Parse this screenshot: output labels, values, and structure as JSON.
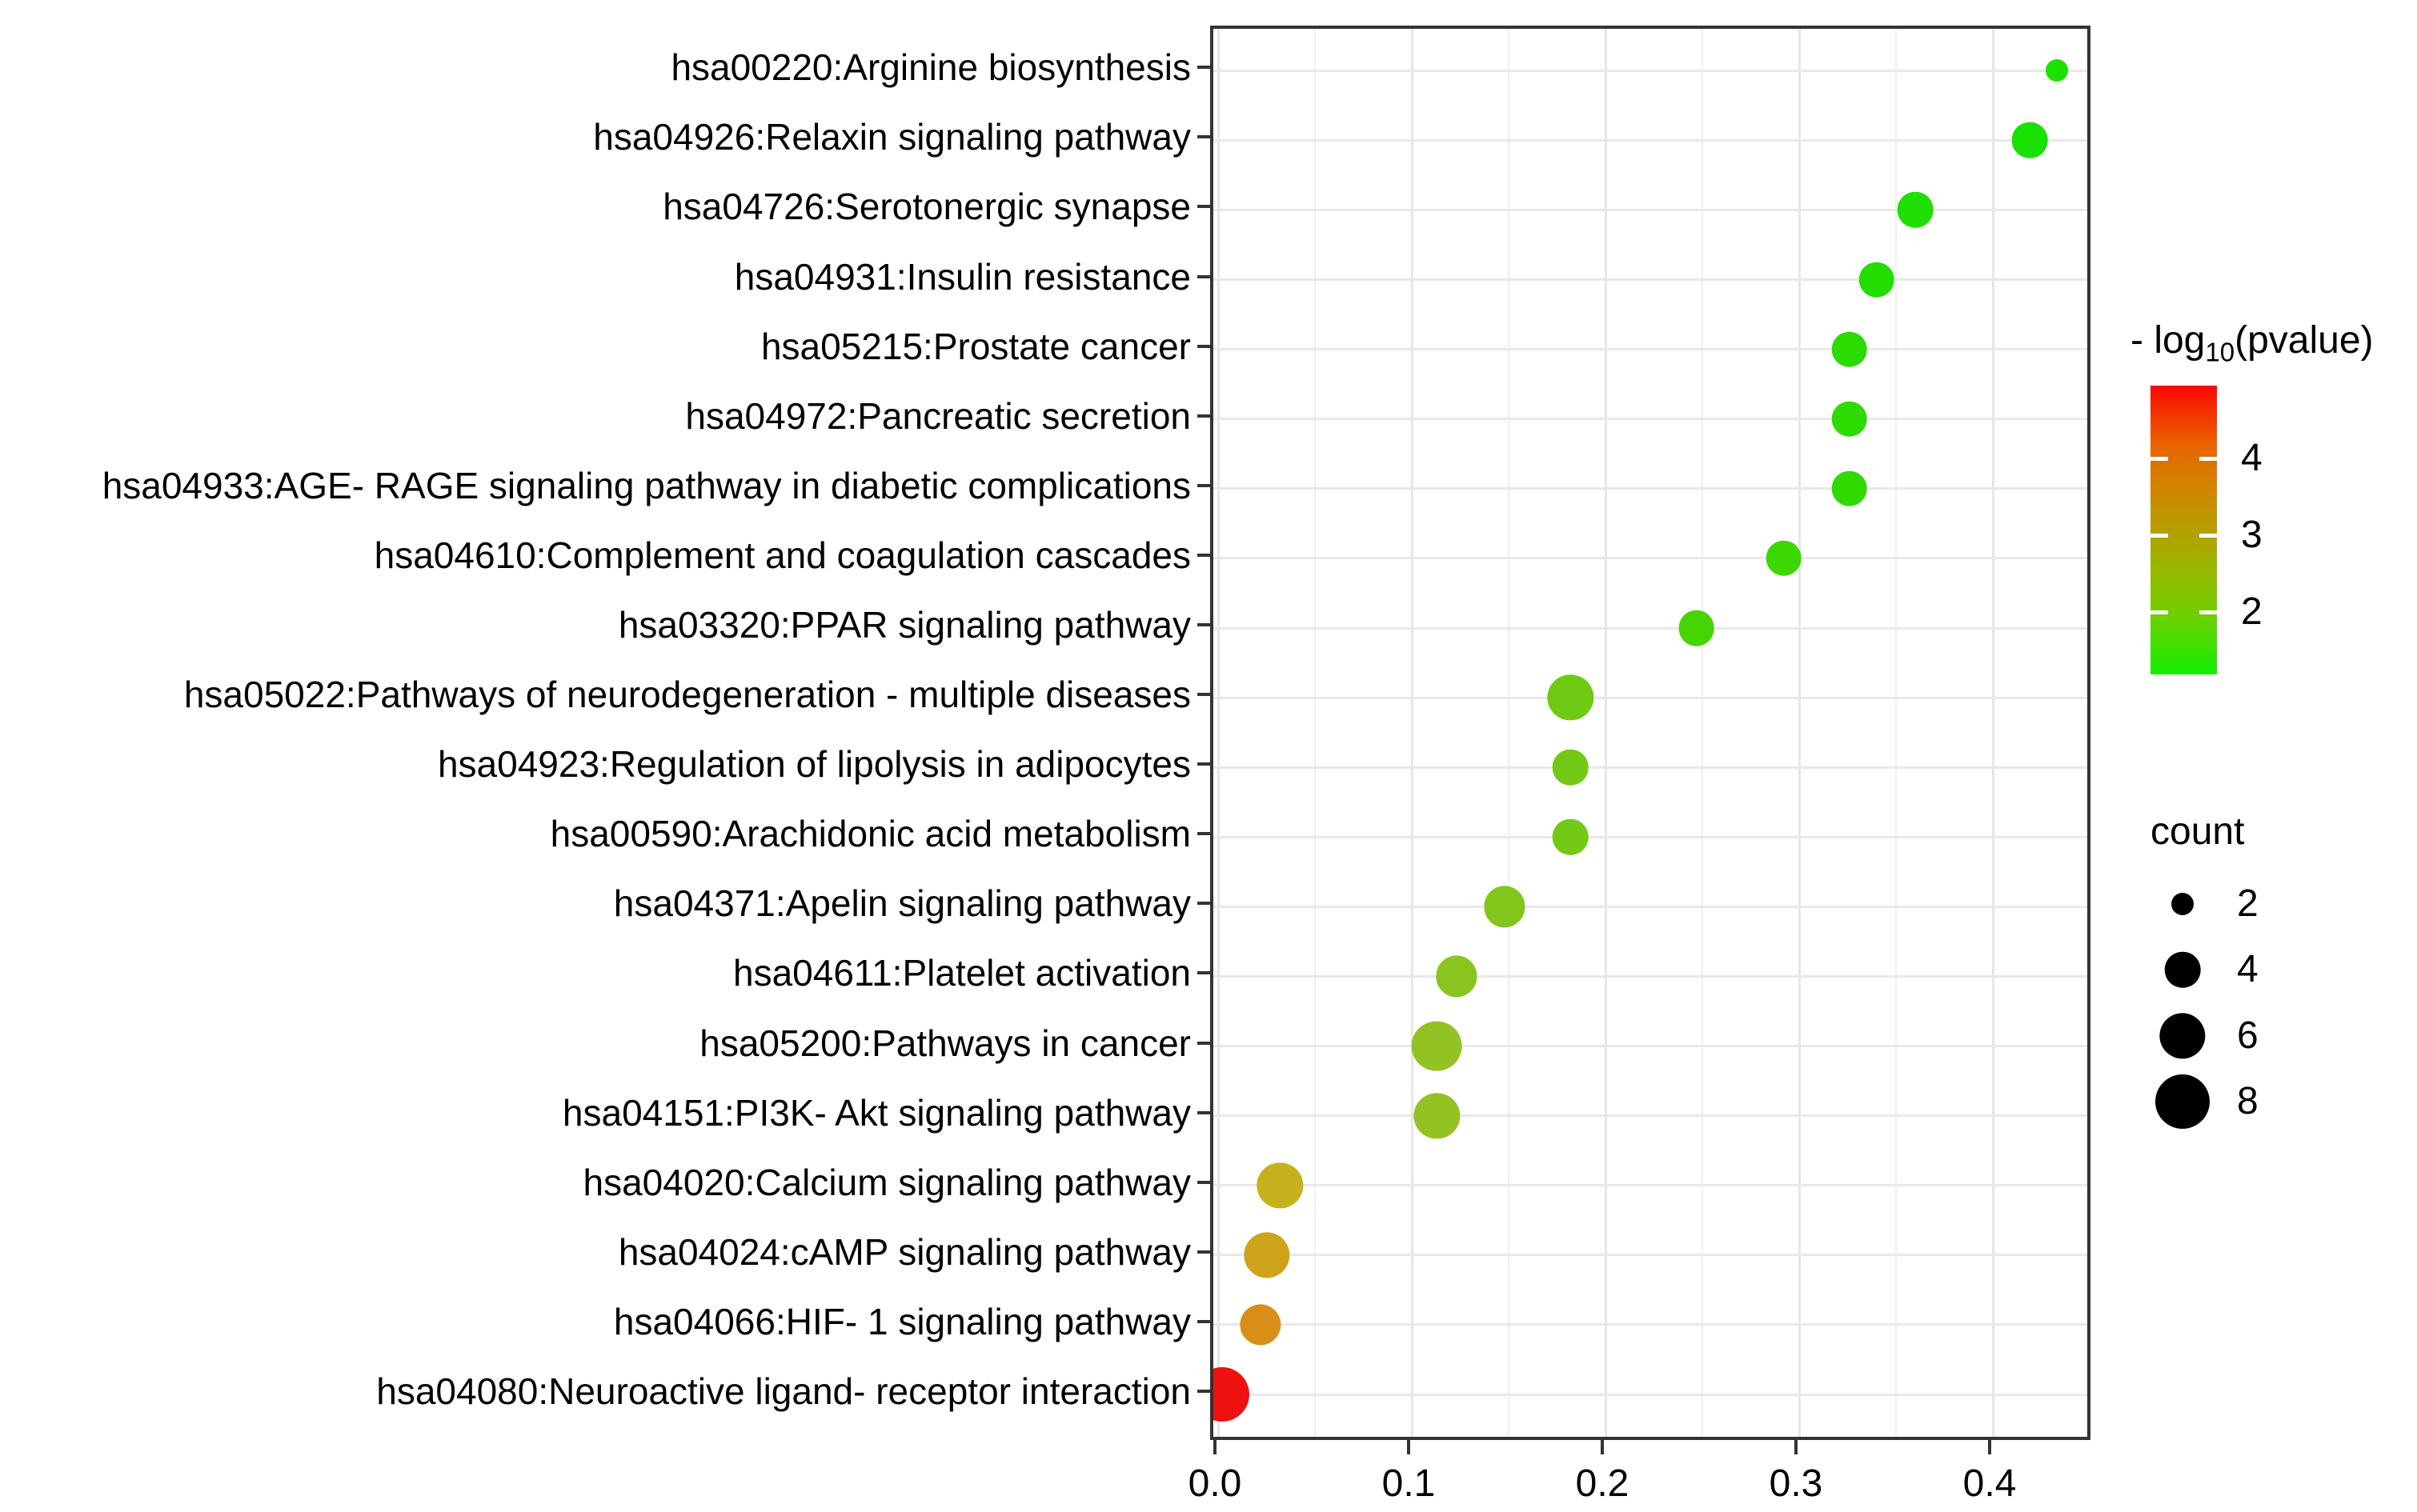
{
  "chart_data": {
    "type": "scatter",
    "title": "",
    "xlabel": "",
    "ylabel": "",
    "xlim": [
      -0.0025,
      0.452
    ],
    "x_ticks": [
      "0.0",
      "0.1",
      "0.2",
      "0.3",
      "0.4"
    ],
    "x_tick_values": [
      0.0,
      0.1,
      0.2,
      0.3,
      0.4
    ],
    "x_minor_step": 0.05,
    "grid": "on",
    "points": [
      {
        "id": "hsa00220",
        "pathway": "hsa00220:Arginine biosynthesis",
        "x": 0.433,
        "count": 2,
        "neg_log10_pvalue": 1.5,
        "color": "#1ce000"
      },
      {
        "id": "hsa04926",
        "pathway": "hsa04926:Relaxin signaling pathway",
        "x": 0.419,
        "count": 4,
        "neg_log10_pvalue": 1.55,
        "color": "#18e000"
      },
      {
        "id": "hsa04726",
        "pathway": "hsa04726:Serotonergic synapse",
        "x": 0.36,
        "count": 4,
        "neg_log10_pvalue": 1.5,
        "color": "#1fdf00"
      },
      {
        "id": "hsa04931",
        "pathway": "hsa04931:Insulin resistance",
        "x": 0.34,
        "count": 4,
        "neg_log10_pvalue": 1.5,
        "color": "#24dd00"
      },
      {
        "id": "hsa05215",
        "pathway": "hsa05215:Prostate cancer",
        "x": 0.326,
        "count": 4,
        "neg_log10_pvalue": 1.45,
        "color": "#2cdb00"
      },
      {
        "id": "hsa04972",
        "pathway": "hsa04972:Pancreatic secretion",
        "x": 0.326,
        "count": 4,
        "neg_log10_pvalue": 1.45,
        "color": "#2edb00"
      },
      {
        "id": "hsa04933",
        "pathway": "hsa04933:AGE- RAGE signaling pathway in diabetic complications",
        "x": 0.326,
        "count": 4,
        "neg_log10_pvalue": 1.45,
        "color": "#30da00"
      },
      {
        "id": "hsa04610",
        "pathway": "hsa04610:Complement and coagulation cascades",
        "x": 0.292,
        "count": 4,
        "neg_log10_pvalue": 1.4,
        "color": "#3ad800"
      },
      {
        "id": "hsa03320",
        "pathway": "hsa03320:PPAR signaling pathway",
        "x": 0.247,
        "count": 4,
        "neg_log10_pvalue": 1.6,
        "color": "#46d500"
      },
      {
        "id": "hsa05022",
        "pathway": "hsa05022:Pathways of neurodegeneration -  multiple diseases",
        "x": 0.182,
        "count": 6,
        "neg_log10_pvalue": 2.1,
        "color": "#6fca14"
      },
      {
        "id": "hsa04923",
        "pathway": "hsa04923:Regulation of lipolysis in adipocytes",
        "x": 0.182,
        "count": 4,
        "neg_log10_pvalue": 2.1,
        "color": "#72c915"
      },
      {
        "id": "hsa00590",
        "pathway": "hsa00590:Arachidonic acid metabolism",
        "x": 0.182,
        "count": 4,
        "neg_log10_pvalue": 2.1,
        "color": "#74c916"
      },
      {
        "id": "hsa04371",
        "pathway": "hsa04371:Apelin signaling pathway",
        "x": 0.148,
        "count": 5,
        "neg_log10_pvalue": 2.2,
        "color": "#82c61c"
      },
      {
        "id": "hsa04611",
        "pathway": "hsa04611:Platelet activation",
        "x": 0.123,
        "count": 5,
        "neg_log10_pvalue": 2.3,
        "color": "#8ac41f"
      },
      {
        "id": "hsa05200",
        "pathway": "hsa05200:Pathways in cancer",
        "x": 0.113,
        "count": 7,
        "neg_log10_pvalue": 2.4,
        "color": "#92c322"
      },
      {
        "id": "hsa04151",
        "pathway": "hsa04151:PI3K- Akt signaling pathway",
        "x": 0.113,
        "count": 6,
        "neg_log10_pvalue": 2.4,
        "color": "#95c223"
      },
      {
        "id": "hsa04020",
        "pathway": "hsa04020:Calcium signaling pathway",
        "x": 0.032,
        "count": 6,
        "neg_log10_pvalue": 3.2,
        "color": "#c5b21d"
      },
      {
        "id": "hsa04024",
        "pathway": "hsa04024:cAMP signaling pathway",
        "x": 0.025,
        "count": 6,
        "neg_log10_pvalue": 3.4,
        "color": "#cfa21b"
      },
      {
        "id": "hsa04066",
        "pathway": "hsa04066:HIF- 1 signaling pathway",
        "x": 0.022,
        "count": 5,
        "neg_log10_pvalue": 3.6,
        "color": "#d98f17"
      },
      {
        "id": "hsa04080",
        "pathway": "hsa04080:Neuroactive ligand- receptor interaction",
        "x": 0.002,
        "count": 8,
        "neg_log10_pvalue": 5.0,
        "color": "#ee1111"
      }
    ],
    "color_legend": {
      "title_prefix": "- log",
      "title_sub": "10",
      "title_suffix": "(pvalue)",
      "ticks": [
        4,
        3,
        2
      ],
      "range": [
        1.19,
        4.95
      ],
      "gradient_stops": [
        [
          0.0,
          "#fb0600"
        ],
        [
          0.2,
          "#e96200"
        ],
        [
          0.35,
          "#d18400"
        ],
        [
          0.5,
          "#b59f00"
        ],
        [
          0.65,
          "#95b900"
        ],
        [
          0.8,
          "#6ed000"
        ],
        [
          1.0,
          "#15ee00"
        ]
      ]
    },
    "size_legend": {
      "title": "count",
      "values": [
        2,
        4,
        6,
        8
      ],
      "dot_color": "#000000"
    },
    "legend_position": "right"
  }
}
